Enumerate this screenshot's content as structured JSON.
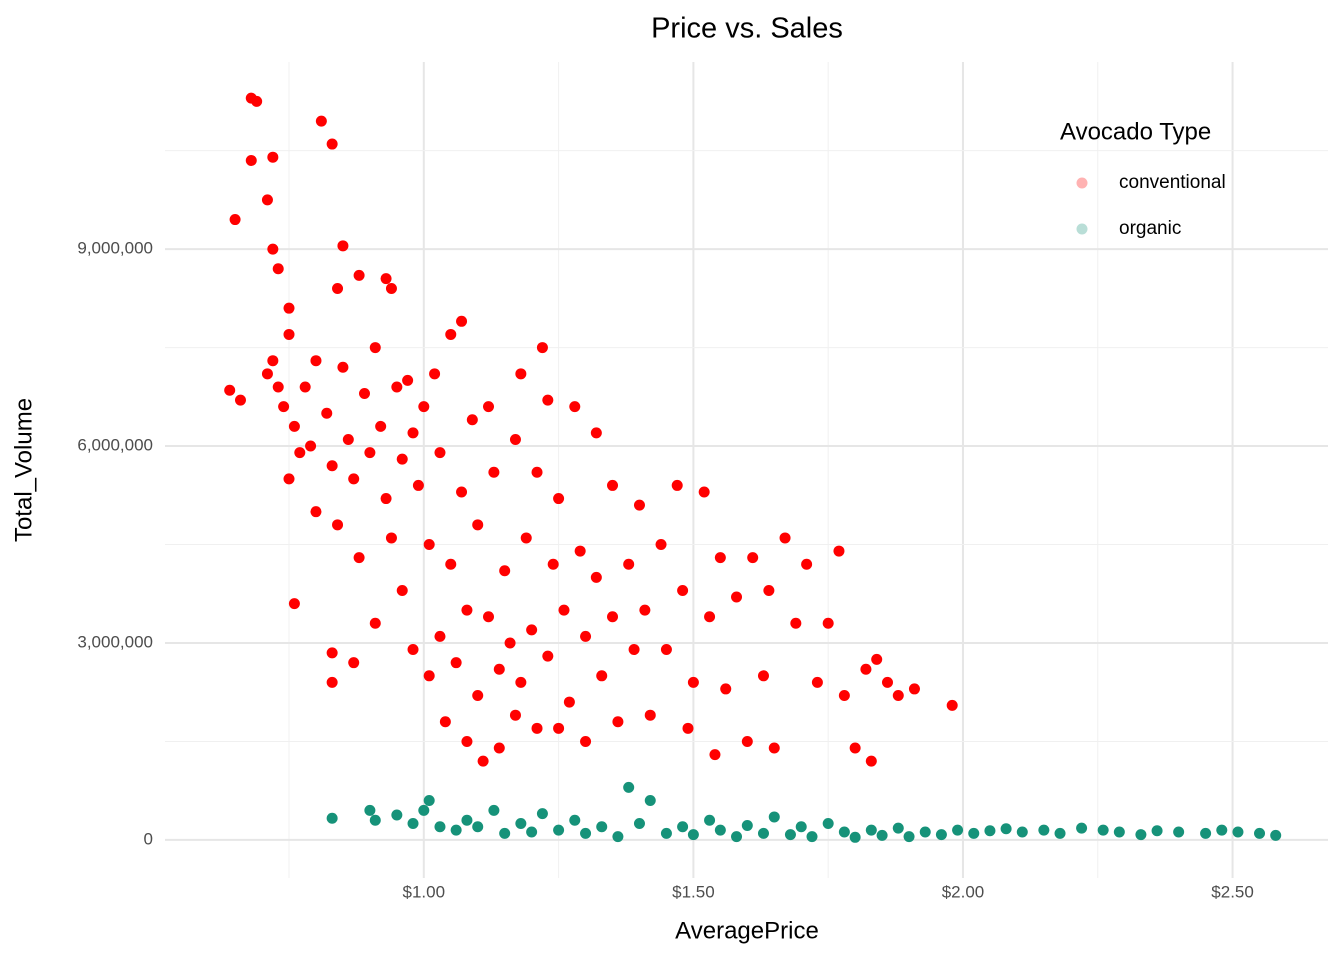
{
  "chart_data": {
    "type": "scatter",
    "title": "Price vs. Sales",
    "x_label": "AveragePrice",
    "y_label": "Total_Volume",
    "legend_title": "Avocado Type",
    "legend_position": "top-right",
    "grid": true,
    "xlim": [
      0.52,
      2.677
    ],
    "ylim": [
      -580000,
      11850000
    ],
    "xticks": [
      {
        "value": 1.0,
        "label": "$1.00"
      },
      {
        "value": 1.5,
        "label": "$1.50"
      },
      {
        "value": 2.0,
        "label": "$2.00"
      },
      {
        "value": 2.5,
        "label": "$2.50"
      }
    ],
    "yticks": [
      0,
      {
        "value": 3000000,
        "label": "3,000,000"
      },
      {
        "value": 6000000,
        "label": "6,000,000"
      },
      {
        "value": 9000000,
        "label": "9,000,000"
      }
    ],
    "series": [
      {
        "name": "conventional",
        "color": "#ff0000",
        "x": [
          0.64,
          0.66,
          0.65,
          0.68,
          0.68,
          0.69,
          0.71,
          0.72,
          0.72,
          0.73,
          0.71,
          0.72,
          0.73,
          0.74,
          0.75,
          0.75,
          0.76,
          0.77,
          0.75,
          0.76,
          0.78,
          0.79,
          0.8,
          0.81,
          0.8,
          0.82,
          0.83,
          0.83,
          0.84,
          0.84,
          0.85,
          0.85,
          0.86,
          0.87,
          0.88,
          0.88,
          0.83,
          0.83,
          0.87,
          0.89,
          0.9,
          0.91,
          0.91,
          0.92,
          0.93,
          0.93,
          0.94,
          0.94,
          0.95,
          0.96,
          0.96,
          0.97,
          0.98,
          0.98,
          0.99,
          1.0,
          1.01,
          1.01,
          1.02,
          1.03,
          1.03,
          1.04,
          1.05,
          1.05,
          1.06,
          1.07,
          1.07,
          1.08,
          1.08,
          1.09,
          1.1,
          1.1,
          1.11,
          1.12,
          1.12,
          1.13,
          1.14,
          1.14,
          1.15,
          1.16,
          1.17,
          1.17,
          1.18,
          1.18,
          1.19,
          1.2,
          1.21,
          1.21,
          1.22,
          1.23,
          1.23,
          1.24,
          1.25,
          1.25,
          1.26,
          1.27,
          1.28,
          1.29,
          1.3,
          1.3,
          1.32,
          1.32,
          1.33,
          1.35,
          1.35,
          1.36,
          1.38,
          1.39,
          1.4,
          1.41,
          1.42,
          1.44,
          1.45,
          1.47,
          1.48,
          1.49,
          1.5,
          1.52,
          1.53,
          1.54,
          1.55,
          1.56,
          1.58,
          1.6,
          1.61,
          1.63,
          1.64,
          1.65,
          1.67,
          1.69,
          1.71,
          1.73,
          1.75,
          1.77,
          1.78,
          1.8,
          1.82,
          1.83,
          1.84,
          1.86,
          1.88,
          1.91,
          1.98
        ],
        "values": [
          6850000,
          6700000,
          9450000,
          10350000,
          11300000,
          11250000,
          9750000,
          10400000,
          9000000,
          8700000,
          7100000,
          7300000,
          6900000,
          6600000,
          8100000,
          7700000,
          6300000,
          5900000,
          5500000,
          3600000,
          6900000,
          6000000,
          7300000,
          10950000,
          5000000,
          6500000,
          10600000,
          5700000,
          8400000,
          4800000,
          9050000,
          7200000,
          6100000,
          5500000,
          8600000,
          4300000,
          2850000,
          2400000,
          2700000,
          6800000,
          5900000,
          3300000,
          7500000,
          6300000,
          5200000,
          8550000,
          8400000,
          4600000,
          6900000,
          5800000,
          3800000,
          7000000,
          6200000,
          2900000,
          5400000,
          6600000,
          4500000,
          2500000,
          7100000,
          5900000,
          3100000,
          1800000,
          7700000,
          4200000,
          2700000,
          7900000,
          5300000,
          3500000,
          1500000,
          6400000,
          4800000,
          2200000,
          1200000,
          6600000,
          3400000,
          5600000,
          2600000,
          1400000,
          4100000,
          3000000,
          6100000,
          1900000,
          7100000,
          2400000,
          4600000,
          3200000,
          1700000,
          5600000,
          7500000,
          6700000,
          2800000,
          4200000,
          5200000,
          1700000,
          3500000,
          2100000,
          6600000,
          4400000,
          3100000,
          1500000,
          6200000,
          4000000,
          2500000,
          3400000,
          5400000,
          1800000,
          4200000,
          2900000,
          5100000,
          3500000,
          1900000,
          4500000,
          2900000,
          5400000,
          3800000,
          1700000,
          2400000,
          5300000,
          3400000,
          1300000,
          4300000,
          2300000,
          3700000,
          1500000,
          4300000,
          2500000,
          3800000,
          1400000,
          4600000,
          3300000,
          4200000,
          2400000,
          3300000,
          4400000,
          2200000,
          1400000,
          2600000,
          1200000,
          2750000,
          2400000,
          2200000,
          2300000,
          2050000
        ]
      },
      {
        "name": "organic",
        "color": "#169279",
        "x": [
          0.83,
          0.9,
          0.91,
          0.95,
          0.98,
          1.0,
          1.01,
          1.03,
          1.06,
          1.08,
          1.1,
          1.13,
          1.15,
          1.18,
          1.2,
          1.22,
          1.25,
          1.28,
          1.3,
          1.33,
          1.36,
          1.38,
          1.4,
          1.42,
          1.45,
          1.48,
          1.5,
          1.53,
          1.55,
          1.58,
          1.6,
          1.63,
          1.65,
          1.68,
          1.7,
          1.72,
          1.75,
          1.78,
          1.8,
          1.83,
          1.85,
          1.88,
          1.9,
          1.93,
          1.96,
          1.99,
          2.02,
          2.05,
          2.08,
          2.11,
          2.15,
          2.18,
          2.22,
          2.26,
          2.29,
          2.33,
          2.36,
          2.4,
          2.45,
          2.48,
          2.51,
          2.55,
          2.58
        ],
        "values": [
          330000,
          450000,
          300000,
          380000,
          250000,
          450000,
          600000,
          200000,
          150000,
          300000,
          200000,
          450000,
          100000,
          250000,
          120000,
          400000,
          150000,
          300000,
          100000,
          200000,
          50000,
          800000,
          250000,
          600000,
          100000,
          200000,
          80000,
          300000,
          150000,
          50000,
          220000,
          100000,
          350000,
          80000,
          200000,
          50000,
          250000,
          120000,
          40000,
          150000,
          70000,
          180000,
          50000,
          120000,
          80000,
          150000,
          100000,
          140000,
          170000,
          120000,
          150000,
          100000,
          180000,
          150000,
          120000,
          80000,
          140000,
          120000,
          100000,
          150000,
          120000,
          100000,
          70000
        ]
      }
    ]
  }
}
